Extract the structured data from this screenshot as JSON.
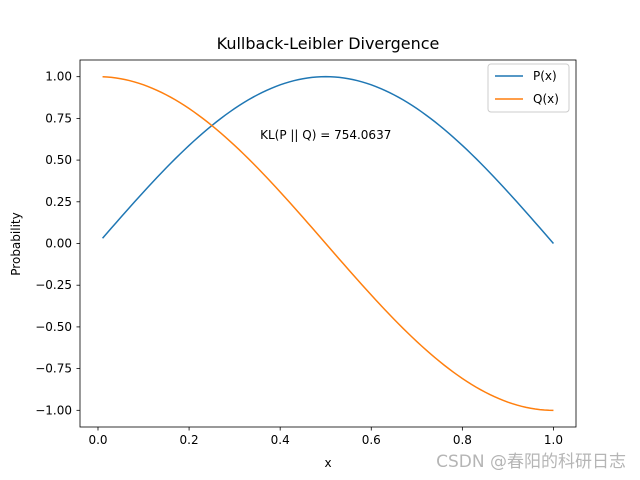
{
  "chart_data": {
    "type": "line",
    "title": "Kullback-Leibler Divergence",
    "xlabel": "x",
    "ylabel": "Probability",
    "xlim": [
      -0.0395,
      1.0495
    ],
    "ylim": [
      -1.1,
      1.1
    ],
    "xticks": [
      0.0,
      0.2,
      0.4,
      0.6,
      0.8,
      1.0
    ],
    "xtick_labels": [
      "0.0",
      "0.2",
      "0.4",
      "0.6",
      "0.8",
      "1.0"
    ],
    "yticks": [
      1.0,
      0.75,
      0.5,
      0.25,
      0.0,
      -0.25,
      -0.5,
      -0.75,
      -1.0
    ],
    "ytick_labels": [
      "1.00",
      "0.75",
      "0.50",
      "0.25",
      "0.00",
      "−0.25",
      "−0.50",
      "−0.75",
      "−1.00"
    ],
    "grid": false,
    "legend_position": "top-right",
    "annotation": {
      "text": "KL(P || Q) = 754.0637",
      "x": 0.5,
      "y": 0.65
    },
    "series": [
      {
        "name": "P(x)",
        "color": "#1f77b4",
        "function": "sin(pi*x)",
        "x_range": [
          0.01,
          1.0
        ],
        "num_points": 100
      },
      {
        "name": "Q(x)",
        "color": "#ff7f0e",
        "function": "cos(pi*x)",
        "x_range": [
          0.01,
          1.0
        ],
        "num_points": 100
      }
    ]
  },
  "watermark": "CSDN @春阳的科研日志"
}
